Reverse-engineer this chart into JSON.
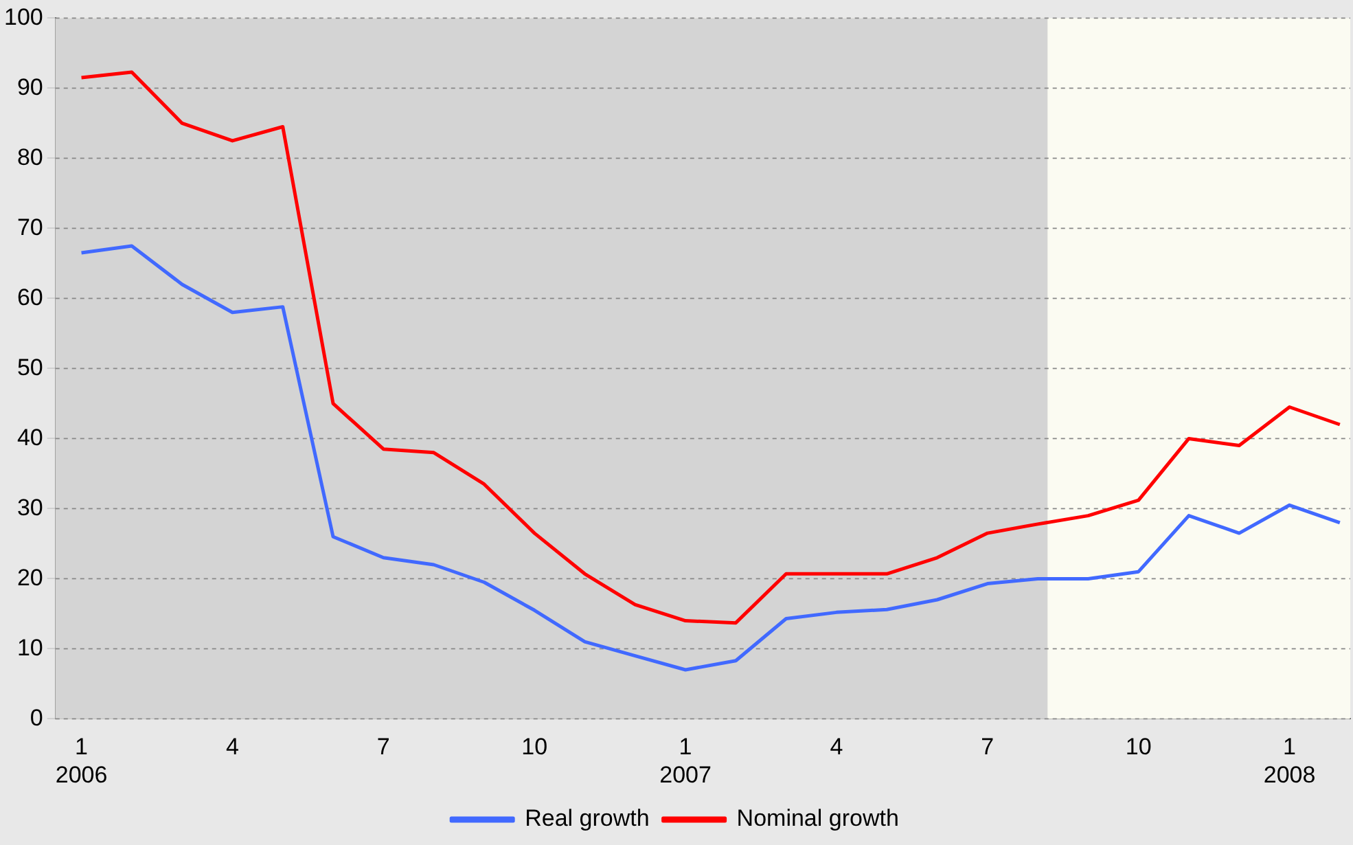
{
  "chart_data": {
    "type": "line",
    "x": [
      "2006-01",
      "2006-02",
      "2006-03",
      "2006-04",
      "2006-05",
      "2006-06",
      "2006-07",
      "2006-08",
      "2006-09",
      "2006-10",
      "2006-11",
      "2006-12",
      "2007-01",
      "2007-02",
      "2007-03",
      "2007-04",
      "2007-05",
      "2007-06",
      "2007-07",
      "2007-08",
      "2007-09",
      "2007-10",
      "2007-11",
      "2007-12",
      "2008-01",
      "2008-02"
    ],
    "series": [
      {
        "name": "Real growth",
        "color": "#4169ff",
        "values": [
          66.5,
          67.5,
          62,
          58,
          58.8,
          26,
          23,
          22,
          19.5,
          15.5,
          11,
          9,
          7,
          8.3,
          14.3,
          15.2,
          15.6,
          17,
          19.3,
          20,
          20,
          21,
          29,
          26.5,
          30.5,
          28
        ]
      },
      {
        "name": "Nominal growth",
        "color": "#ff0000",
        "values": [
          91.5,
          92.3,
          85,
          82.5,
          84.5,
          45,
          38.5,
          38,
          33.5,
          26.5,
          20.7,
          16.3,
          14,
          13.7,
          20.7,
          20.7,
          20.7,
          23,
          26.5,
          27.8,
          29,
          31.2,
          40,
          39,
          44.5,
          42
        ]
      }
    ],
    "xlim": [
      "2005-12-16",
      "2008-02-07"
    ],
    "xticks": [
      {
        "value": "2006-01",
        "label": "1\n2006"
      },
      {
        "value": "2006-04",
        "label": "4"
      },
      {
        "value": "2006-07",
        "label": "7"
      },
      {
        "value": "2006-10",
        "label": "10"
      },
      {
        "value": "2007-01",
        "label": "1\n2007"
      },
      {
        "value": "2007-04",
        "label": "4"
      },
      {
        "value": "2007-07",
        "label": "7"
      },
      {
        "value": "2007-10",
        "label": "10"
      },
      {
        "value": "2008-01",
        "label": "1\n2008"
      }
    ],
    "ylim": [
      0,
      100
    ],
    "yticks": [
      0,
      10,
      20,
      30,
      40,
      50,
      60,
      70,
      80,
      90,
      100
    ],
    "bands": [
      {
        "axis": "x",
        "from": "2005-12-16",
        "to": "2007-08-07",
        "color": "#d4d4d4"
      }
    ],
    "grid": "y",
    "legend": "bottom",
    "marker": "none",
    "line_style": "solid"
  }
}
